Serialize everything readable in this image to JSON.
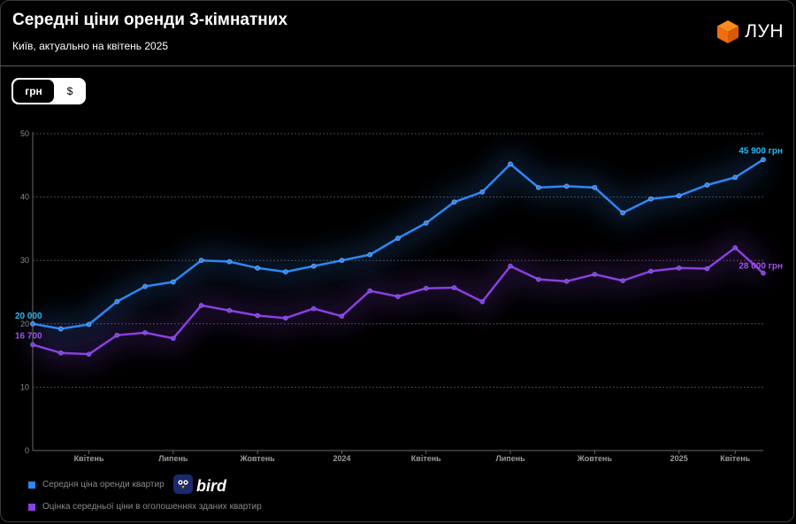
{
  "header": {
    "title": "Середні ціни оренди 3-кімнатних",
    "subtitle": "Київ, актуально на квітень 2025",
    "brand": "ЛУН"
  },
  "currency_toggle": {
    "options": [
      "грн",
      "$"
    ],
    "selected": "грн"
  },
  "watermark": {
    "text": "bird"
  },
  "colors": {
    "series_blue": "#2f86f2",
    "series_purple": "#8a3fe0",
    "label_blue": "#27b7f0",
    "label_purple": "#a24fe8",
    "background": "#000000"
  },
  "chart_data": {
    "type": "line",
    "ylim": [
      0,
      50
    ],
    "yticks": [
      "0",
      "10",
      "20",
      "30",
      "40",
      "50"
    ],
    "xtick_labels": [
      "Квітень",
      "Липень",
      "Жовтень",
      "2024",
      "Квітень",
      "Липень",
      "Жовтень",
      "2025",
      "Квітень"
    ],
    "xtick_positions": [
      2,
      5,
      8,
      11,
      14,
      17,
      20,
      23,
      25
    ],
    "grid": true,
    "series": [
      {
        "name": "Середня ціна оренди квартир",
        "color": "#2f86f2",
        "values": [
          20.0,
          19.2,
          19.9,
          23.5,
          25.9,
          26.6,
          30.0,
          29.8,
          28.8,
          28.2,
          29.1,
          30.0,
          30.9,
          33.5,
          35.9,
          39.2,
          40.8,
          45.2,
          41.5,
          41.7,
          41.5,
          37.5,
          39.7,
          40.2,
          41.9,
          43.1,
          45.9
        ],
        "start_label": "20 000",
        "end_label": "45 900 грн"
      },
      {
        "name": "Оцінка середньої ціни в оголошеннях зданих квартир",
        "color": "#8a3fe0",
        "values": [
          16.7,
          15.4,
          15.2,
          18.2,
          18.6,
          17.7,
          22.9,
          22.1,
          21.3,
          20.9,
          22.4,
          21.2,
          25.2,
          24.3,
          25.6,
          25.7,
          23.5,
          29.1,
          27.0,
          26.7,
          27.8,
          26.8,
          28.3,
          28.8,
          28.7,
          32.0,
          28.0
        ],
        "start_label": "16 700",
        "end_label": "28 000 грн"
      }
    ]
  }
}
